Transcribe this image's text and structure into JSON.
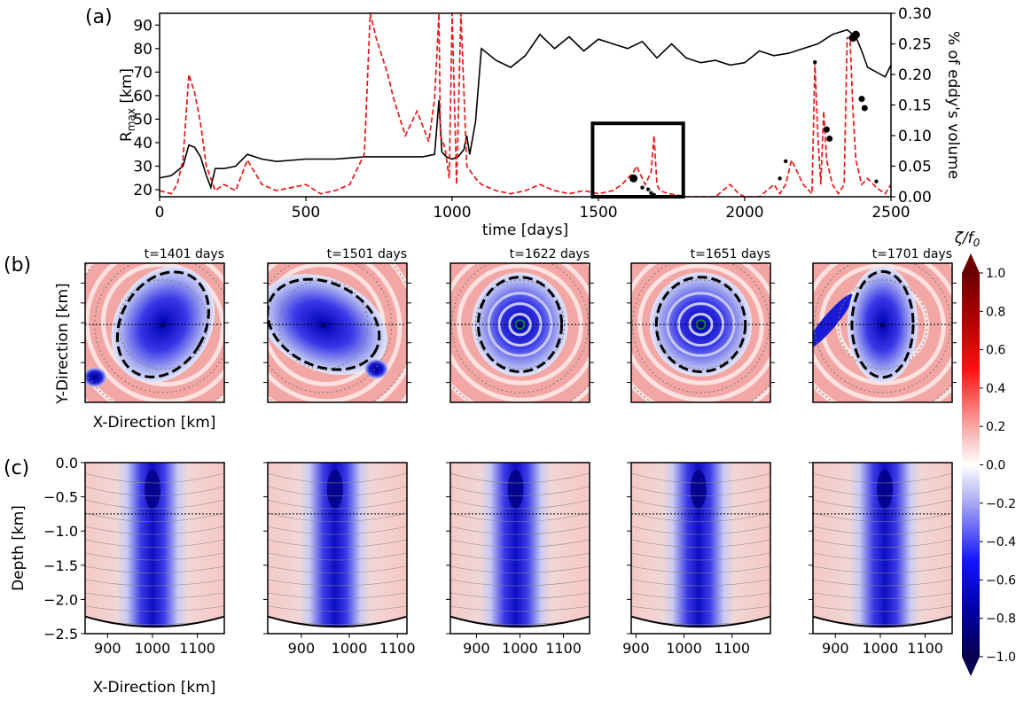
{
  "panel_labels": {
    "a": "(a)",
    "b": "(b)",
    "c": "(c)"
  },
  "colorbar": {
    "label": "ζ/f",
    "label_sub": "0",
    "ticks": [
      "1.0",
      "0.8",
      "0.6",
      "0.4",
      "0.2",
      "0.0",
      "−0.2",
      "−0.4",
      "−0.6",
      "−0.8",
      "−1.0"
    ],
    "range": [
      -1.0,
      1.0
    ],
    "colors": {
      "negative_end": "#08004f",
      "mid": "#ffffff",
      "positive_end": "#6b0000"
    }
  },
  "colors": {
    "rmax_line": "#000000",
    "volume_line": "#e8161b",
    "positive_vorticity": "#f2a7a4",
    "negative_vorticity": "#1a1ad6"
  },
  "chart_data": [
    {
      "type": "line",
      "panel": "a",
      "xlabel": "time [days]",
      "ylabel_left": "R",
      "ylabel_left_sub": "max",
      "ylabel_left_unit": " [km]",
      "ylabel_right": "% of eddy's volume",
      "xlim": [
        0,
        2500
      ],
      "ylim_left": [
        17,
        95
      ],
      "ylim_right": [
        0,
        0.3
      ],
      "x_ticks": [
        "0",
        "500",
        "1000",
        "1500",
        "2000",
        "2500"
      ],
      "y_ticks_left": [
        "20",
        "30",
        "40",
        "50",
        "60",
        "70",
        "80",
        "90"
      ],
      "y_ticks_right": [
        "0.00",
        "0.05",
        "0.10",
        "0.15",
        "0.20",
        "0.25",
        "0.30"
      ],
      "series": [
        {
          "axis": "left",
          "style": "solid",
          "x": [
            0,
            40,
            80,
            100,
            120,
            140,
            160,
            175,
            190,
            220,
            260,
            300,
            350,
            400,
            500,
            600,
            700,
            800,
            900,
            940,
            955,
            965,
            980,
            1000,
            1020,
            1040,
            1050,
            1060,
            1080,
            1100,
            1150,
            1200,
            1250,
            1300,
            1350,
            1400,
            1450,
            1500,
            1550,
            1600,
            1650,
            1700,
            1750,
            1800,
            1850,
            1900,
            1950,
            2000,
            2050,
            2100,
            2150,
            2200,
            2250,
            2300,
            2350,
            2380,
            2400,
            2420,
            2450,
            2480,
            2500
          ],
          "y": [
            25,
            26,
            30,
            39,
            38,
            34,
            26,
            21,
            29,
            29,
            30,
            35,
            33,
            32,
            33,
            33,
            34,
            34,
            34,
            35,
            58,
            36,
            34,
            33,
            34,
            37,
            43,
            35,
            49,
            80,
            75,
            72,
            77,
            86,
            80,
            85,
            79,
            84,
            82,
            80,
            83,
            76,
            82,
            76,
            74,
            75,
            73,
            74,
            79,
            77,
            78,
            80,
            82,
            86,
            88,
            85,
            79,
            72,
            70,
            68,
            73
          ]
        },
        {
          "axis": "right",
          "style": "dashed",
          "x": [
            0,
            40,
            60,
            80,
            100,
            120,
            140,
            160,
            175,
            190,
            220,
            260,
            300,
            350,
            400,
            500,
            550,
            600,
            650,
            700,
            720,
            740,
            760,
            780,
            800,
            840,
            880,
            920,
            940,
            955,
            960,
            975,
            990,
            1000,
            1015,
            1030,
            1050,
            1080,
            1100,
            1150,
            1200,
            1250,
            1300,
            1350,
            1400,
            1450,
            1500,
            1550,
            1580,
            1600,
            1620,
            1630,
            1650,
            1660,
            1680,
            1690,
            1700,
            1710,
            1740,
            1800,
            1900,
            1950,
            1980,
            2000,
            2050,
            2100,
            2120,
            2140,
            2160,
            2200,
            2230,
            2240,
            2250,
            2260,
            2270,
            2280,
            2300,
            2320,
            2340,
            2350,
            2360,
            2370,
            2380,
            2400,
            2420,
            2450,
            2480,
            2500
          ],
          "y": [
            0.01,
            0.005,
            0.02,
            0.06,
            0.2,
            0.17,
            0.12,
            0.05,
            0.03,
            0.01,
            0.02,
            0.01,
            0.06,
            0.02,
            0.01,
            0.02,
            0.005,
            0.01,
            0.02,
            0.07,
            0.3,
            0.26,
            0.23,
            0.2,
            0.16,
            0.1,
            0.14,
            0.09,
            0.16,
            0.3,
            0.1,
            0.08,
            0.03,
            0.3,
            0.02,
            0.3,
            0.05,
            0.03,
            0.02,
            0.01,
            0.005,
            0.01,
            0.02,
            0.01,
            0.005,
            0.01,
            0.005,
            0.01,
            0.02,
            0.03,
            0.04,
            0.05,
            0.03,
            0.02,
            0.04,
            0.1,
            0.02,
            0.01,
            0.005,
            0.0,
            0.0,
            0.02,
            0.005,
            0.0,
            0.0,
            0.02,
            0.005,
            0.02,
            0.06,
            0.02,
            0.005,
            0.22,
            0.1,
            0.02,
            0.14,
            0.06,
            0.02,
            0.005,
            0.02,
            0.26,
            0.26,
            0.14,
            0.06,
            0.02,
            0.03,
            0.015,
            0.005,
            0.02
          ]
        }
      ],
      "event_points": [
        {
          "x": 1620,
          "y": 0.03,
          "size": "large"
        },
        {
          "x": 1650,
          "y": 0.015,
          "size": "small"
        },
        {
          "x": 1670,
          "y": 0.012,
          "size": "small"
        },
        {
          "x": 1680,
          "y": 0.006,
          "size": "small"
        },
        {
          "x": 1690,
          "y": 0.003,
          "size": "small"
        },
        {
          "x": 2120,
          "y": 0.03,
          "size": "small"
        },
        {
          "x": 2140,
          "y": 0.058,
          "size": "small"
        },
        {
          "x": 2240,
          "y": 0.22,
          "size": "small"
        },
        {
          "x": 2280,
          "y": 0.11,
          "size": "medium"
        },
        {
          "x": 2290,
          "y": 0.095,
          "size": "medium"
        },
        {
          "x": 2370,
          "y": 0.26,
          "size": "large"
        },
        {
          "x": 2380,
          "y": 0.265,
          "size": "large"
        },
        {
          "x": 2400,
          "y": 0.16,
          "size": "medium"
        },
        {
          "x": 2410,
          "y": 0.145,
          "size": "medium"
        },
        {
          "x": 2450,
          "y": 0.025,
          "size": "small"
        }
      ],
      "highlight_window": {
        "x0": 1480,
        "x1": 1790,
        "y_top": 0.12
      }
    },
    {
      "type": "heatmap",
      "panel": "b",
      "xlabel": "X-Direction [km]",
      "ylabel": "Y-Direction [km]",
      "snapshots": [
        {
          "title": "t=1401 days",
          "center": [
            0.56,
            0.44
          ],
          "rx": 0.3,
          "ry": 0.4,
          "rot": 30,
          "satellite": [
            0.07,
            0.82
          ]
        },
        {
          "title": "t=1501 days",
          "center": [
            0.4,
            0.44
          ],
          "rx": 0.42,
          "ry": 0.3,
          "rot": 25,
          "satellite": [
            0.78,
            0.76
          ]
        },
        {
          "title": "t=1622 days",
          "center": [
            0.5,
            0.44
          ],
          "rx": 0.3,
          "ry": 0.34,
          "rot": 0,
          "spiral": true
        },
        {
          "title": "t=1651 days",
          "center": [
            0.5,
            0.44
          ],
          "rx": 0.32,
          "ry": 0.34,
          "rot": 0,
          "spiral": true
        },
        {
          "title": "t=1701 days",
          "center": [
            0.5,
            0.44
          ],
          "rx": 0.22,
          "ry": 0.38,
          "rot": 0,
          "filament": true
        }
      ]
    },
    {
      "type": "heatmap",
      "panel": "c",
      "xlabel": "X-Direction [km]",
      "ylabel": "Depth [km]",
      "y_ticks": [
        "0.0",
        "−0.5",
        "−1.0",
        "−1.5",
        "−2.0",
        "−2.5"
      ],
      "ylim": [
        -2.5,
        0.0
      ],
      "sections": [
        {
          "x_ticks": [
            "900",
            "1000",
            "1100"
          ],
          "x_range": [
            850,
            1160
          ],
          "core_x": 1000
        },
        {
          "x_ticks": [
            "900",
            "1000",
            "1100"
          ],
          "x_range": [
            830,
            1120
          ],
          "core_x": 970
        },
        {
          "x_ticks": [
            "900",
            "1000",
            "1100"
          ],
          "x_range": [
            840,
            1160
          ],
          "core_x": 990
        },
        {
          "x_ticks": [
            "900",
            "1000",
            "1100"
          ],
          "x_range": [
            890,
            1180
          ],
          "core_x": 1030
        },
        {
          "x_ticks": [
            "900",
            "1000",
            "1100"
          ],
          "x_range": [
            850,
            1160
          ],
          "core_x": 1010
        }
      ]
    }
  ]
}
